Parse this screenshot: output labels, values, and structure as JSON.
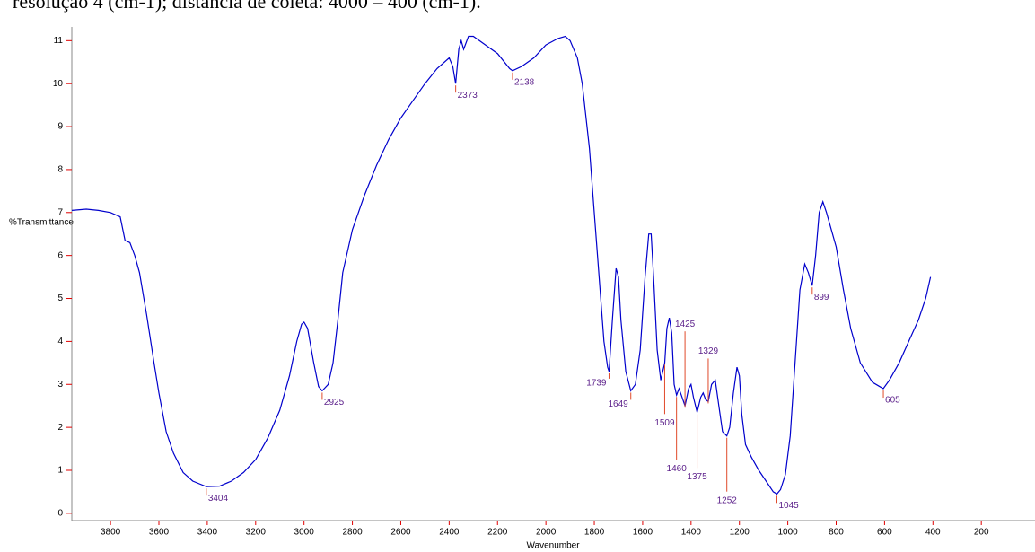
{
  "header": "resolução 4 (cm-1); distância de coleta: 4000 – 400 (cm-1).",
  "chart_data": {
    "type": "line",
    "ylabel": "%Transmittance",
    "xlabel": "Wavenumber",
    "xlim": [
      3960,
      -22
    ],
    "ylim": [
      -0.17,
      11.32
    ],
    "xticks": [
      3800,
      3600,
      3400,
      3200,
      3000,
      2800,
      2600,
      2400,
      2200,
      2000,
      1800,
      1600,
      1400,
      1200,
      1000,
      800,
      600,
      400,
      200
    ],
    "yticks": [
      0,
      1,
      2,
      3,
      4,
      5,
      6,
      7,
      8,
      9,
      10,
      11
    ],
    "x": [
      3960,
      3900,
      3850,
      3800,
      3760,
      3740,
      3720,
      3700,
      3680,
      3650,
      3620,
      3600,
      3570,
      3540,
      3500,
      3460,
      3404,
      3350,
      3300,
      3250,
      3200,
      3150,
      3100,
      3060,
      3030,
      3010,
      3000,
      2985,
      2960,
      2940,
      2925,
      2900,
      2880,
      2860,
      2840,
      2800,
      2750,
      2700,
      2650,
      2600,
      2550,
      2500,
      2450,
      2400,
      2385,
      2373,
      2360,
      2350,
      2340,
      2320,
      2300,
      2250,
      2200,
      2150,
      2138,
      2100,
      2050,
      2000,
      1950,
      1920,
      1900,
      1870,
      1850,
      1820,
      1800,
      1780,
      1760,
      1745,
      1739,
      1725,
      1710,
      1700,
      1690,
      1670,
      1649,
      1630,
      1610,
      1590,
      1575,
      1565,
      1555,
      1540,
      1525,
      1509,
      1500,
      1490,
      1480,
      1470,
      1460,
      1450,
      1440,
      1425,
      1410,
      1400,
      1390,
      1375,
      1360,
      1350,
      1340,
      1329,
      1315,
      1300,
      1285,
      1270,
      1252,
      1240,
      1225,
      1210,
      1200,
      1190,
      1175,
      1150,
      1120,
      1090,
      1060,
      1045,
      1030,
      1010,
      990,
      970,
      950,
      930,
      915,
      899,
      885,
      870,
      855,
      840,
      820,
      800,
      770,
      740,
      700,
      650,
      620,
      605,
      580,
      540,
      500,
      460,
      430,
      410
    ],
    "series": [
      {
        "color": "#0000cc",
        "values": [
          7.05,
          7.08,
          7.05,
          7.0,
          6.9,
          6.35,
          6.3,
          6.0,
          5.6,
          4.6,
          3.5,
          2.8,
          1.9,
          1.4,
          0.95,
          0.75,
          0.62,
          0.63,
          0.75,
          0.95,
          1.25,
          1.75,
          2.4,
          3.2,
          4.0,
          4.4,
          4.45,
          4.3,
          3.5,
          2.95,
          2.85,
          3.0,
          3.5,
          4.5,
          5.6,
          6.6,
          7.4,
          8.1,
          8.7,
          9.2,
          9.6,
          10.0,
          10.35,
          10.6,
          10.4,
          10.0,
          10.8,
          11.0,
          10.8,
          11.1,
          11.1,
          10.9,
          10.7,
          10.35,
          10.3,
          10.4,
          10.6,
          10.9,
          11.05,
          11.1,
          11.0,
          10.6,
          10.0,
          8.5,
          7.0,
          5.5,
          4.0,
          3.4,
          3.3,
          4.5,
          5.7,
          5.5,
          4.5,
          3.3,
          2.85,
          3.0,
          3.8,
          5.5,
          6.5,
          6.5,
          5.5,
          3.8,
          3.1,
          3.5,
          4.3,
          4.55,
          4.2,
          3.0,
          2.75,
          2.9,
          2.75,
          2.5,
          2.9,
          3.0,
          2.7,
          2.35,
          2.7,
          2.8,
          2.65,
          2.6,
          3.0,
          3.1,
          2.5,
          1.9,
          1.8,
          2.0,
          2.8,
          3.4,
          3.2,
          2.3,
          1.6,
          1.3,
          1.0,
          0.75,
          0.5,
          0.45,
          0.55,
          0.9,
          1.8,
          3.5,
          5.2,
          5.8,
          5.6,
          5.3,
          6.0,
          7.0,
          7.25,
          7.0,
          6.6,
          6.2,
          5.2,
          4.3,
          3.5,
          3.05,
          2.95,
          2.9,
          3.1,
          3.5,
          4.0,
          4.5,
          5.0,
          5.5
        ]
      }
    ],
    "peaks": [
      3404,
      2925,
      2373,
      2138,
      1739,
      1649,
      1509,
      1460,
      1425,
      1375,
      1329,
      1252,
      1045,
      899,
      605
    ],
    "peak_color": "#e04a2a",
    "peak_label_color": "#5b1f8a"
  }
}
